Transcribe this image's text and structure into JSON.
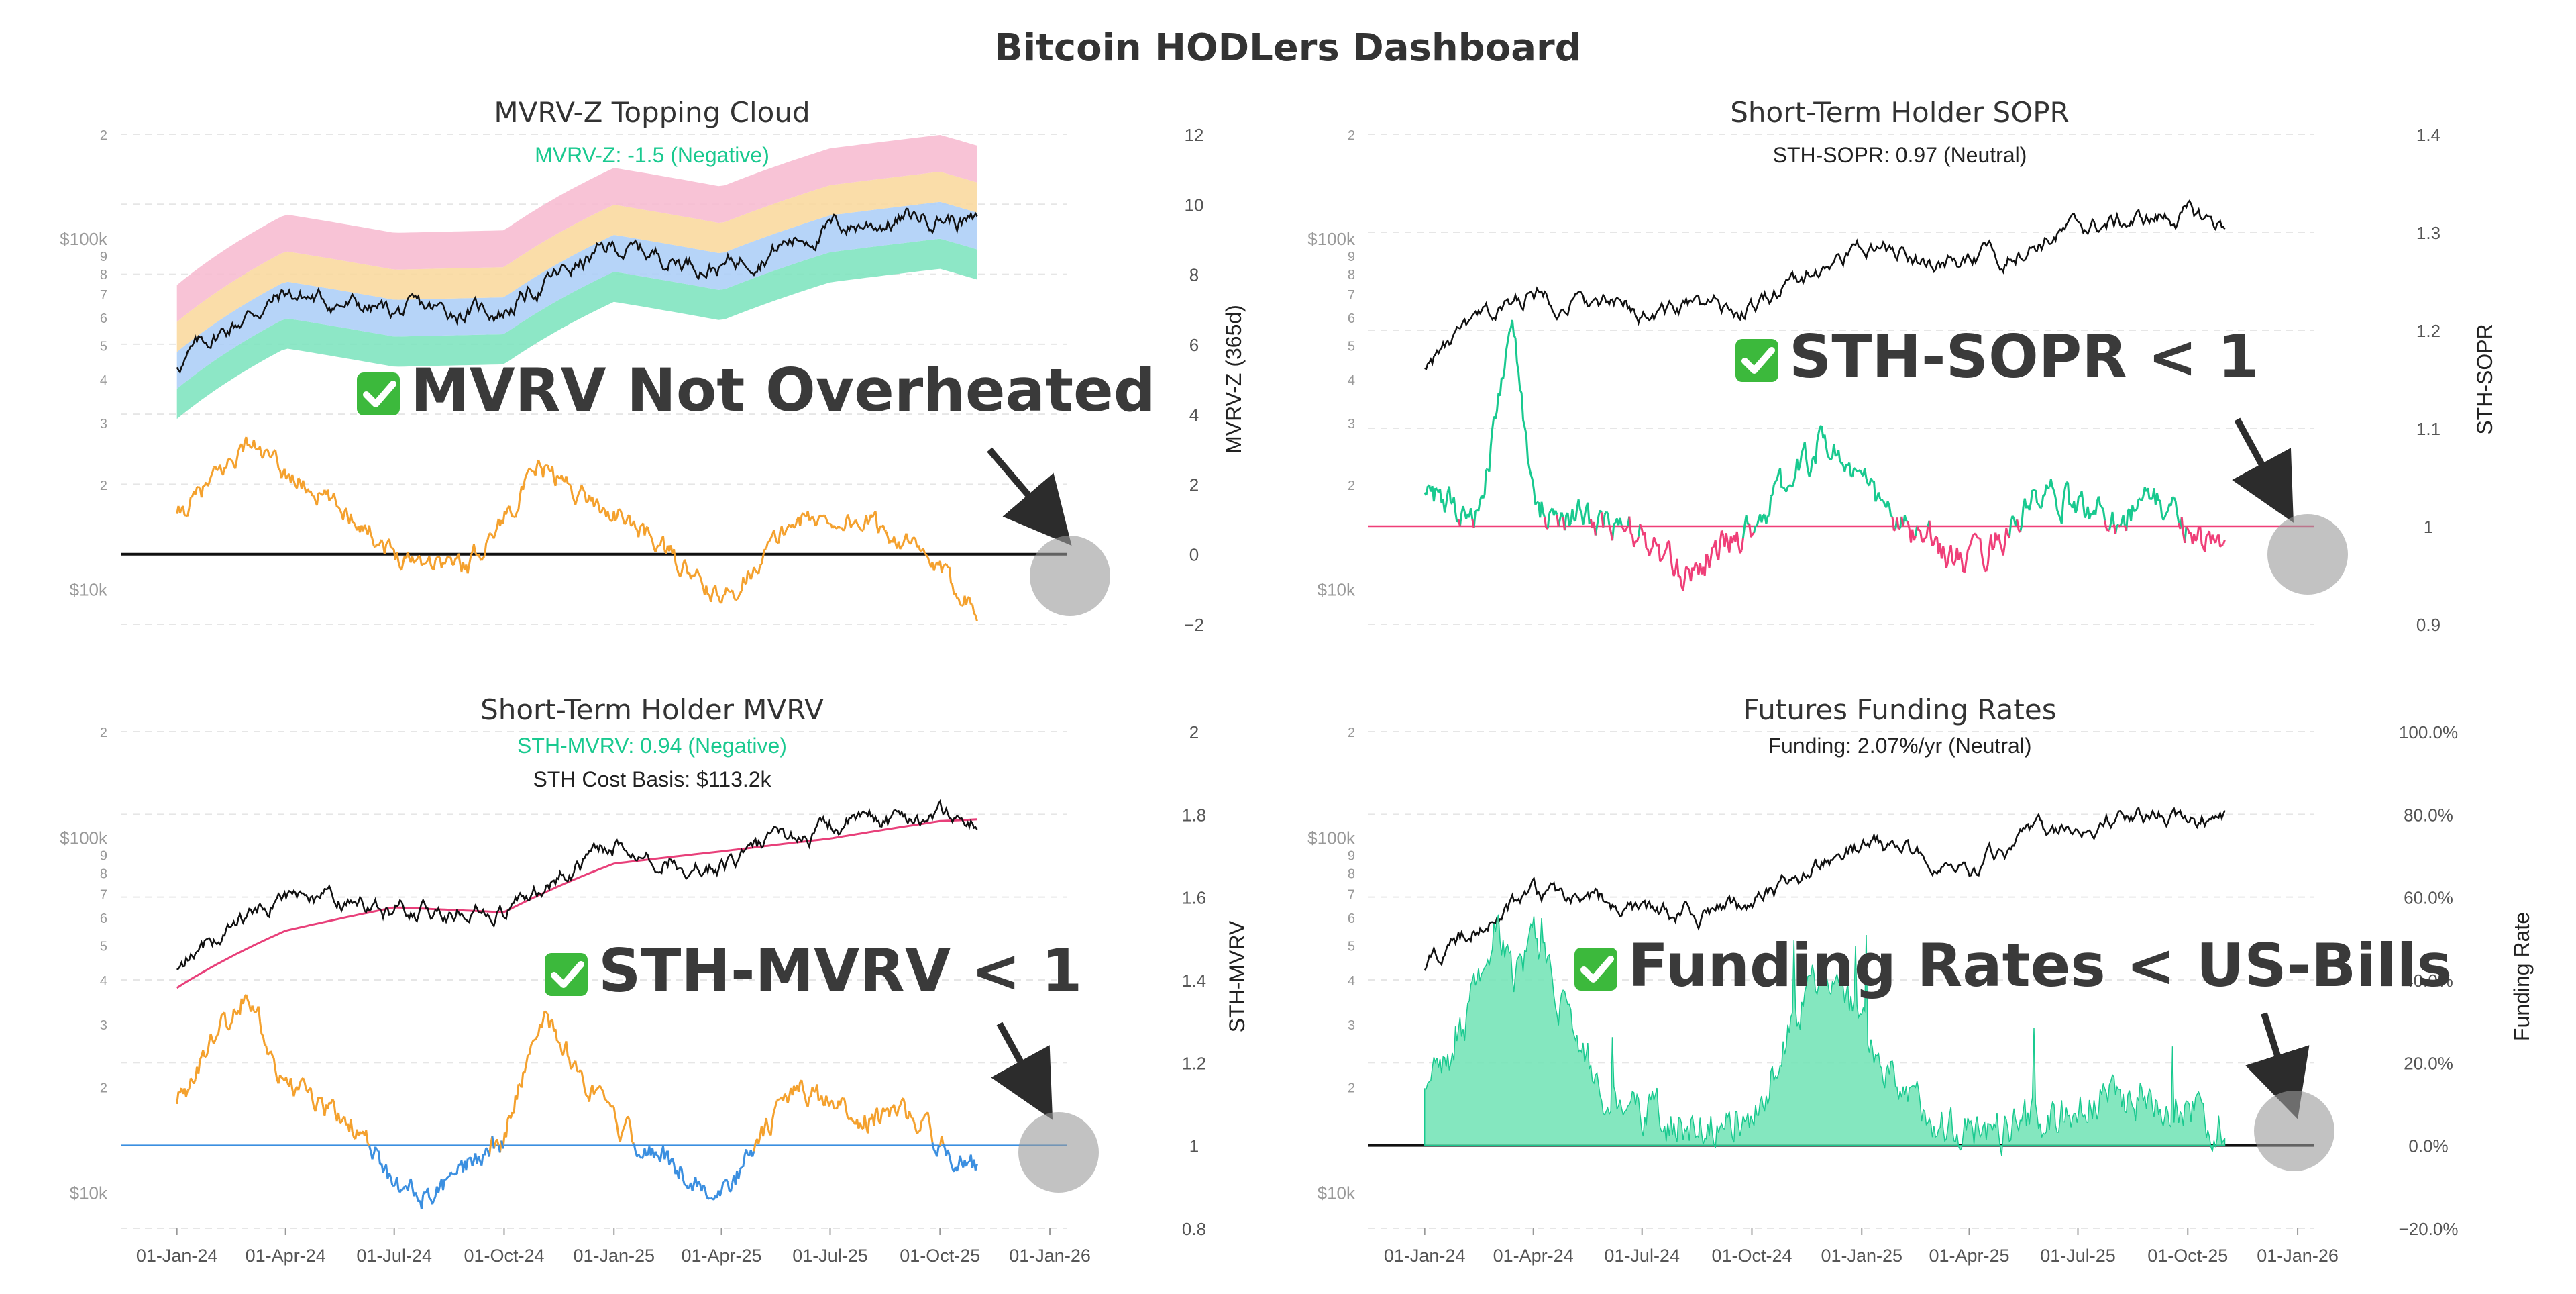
{
  "page": {
    "title": "Bitcoin HODLers Dashboard"
  },
  "colors": {
    "price": "#111111",
    "orange": "#f4a12e",
    "green": "#19c98f",
    "green_fill": "#6fe3b4",
    "pink": "#ef3f78",
    "blue": "#3b8fe0",
    "cost_basis": "#e8407a",
    "callout_circle": "#9a9a9a",
    "check_green": "#3cb93c"
  },
  "x_axis": {
    "dates": [
      "01-Jan-24",
      "01-Apr-24",
      "01-Jul-24",
      "01-Oct-24",
      "01-Jan-25",
      "01-Apr-25",
      "01-Jul-25",
      "01-Oct-25",
      "01-Jan-26"
    ]
  },
  "price_axis": {
    "type": "log",
    "ticks": [
      {
        "label": "$10k"
      },
      {
        "label": "$100k"
      },
      {
        "label": "2"
      },
      {
        "label": "3"
      },
      {
        "label": "4"
      },
      {
        "label": "5"
      },
      {
        "label": "6"
      },
      {
        "label": "7"
      },
      {
        "label": "8"
      },
      {
        "label": "9"
      }
    ]
  },
  "callouts": {
    "c1": {
      "icon": "check-mark-icon",
      "text": "MVRV Not Overheated"
    },
    "c2": {
      "icon": "check-mark-icon",
      "text": "STH-SOPR < 1"
    },
    "c3": {
      "icon": "check-mark-icon",
      "text": "STH-MVRV < 1"
    },
    "c4": {
      "icon": "check-mark-icon",
      "text": "Funding Rates < US-Bills"
    }
  },
  "chart_data": [
    {
      "type": "line",
      "title": "MVRV-Z Topping Cloud",
      "subtitle": "MVRV-Z: -1.5 (Negative)",
      "y2label": "MVRV-Z (365d)",
      "y2ticks": [
        "12",
        "10",
        "8",
        "6",
        "4",
        "2",
        "0",
        "−2"
      ],
      "y2lim": [
        -2,
        12
      ],
      "price_series": {
        "x": [
          "01-Jan-24",
          "01-Apr-24",
          "01-Jul-24",
          "01-Oct-24",
          "01-Jan-25",
          "01-Apr-25",
          "01-Jul-25",
          "01-Oct-25",
          "01-Nov-25"
        ],
        "values": [
          44000,
          70000,
          62000,
          63000,
          95000,
          84000,
          108000,
          118000,
          110000
        ]
      },
      "series": [
        {
          "x": [
            "01-Jan-24",
            "01-Mar-24",
            "01-Apr-24",
            "01-Jun-24",
            "01-Jul-24",
            "01-Sep-24",
            "01-Nov-24",
            "01-Dec-24",
            "01-Feb-25",
            "01-Apr-25",
            "01-Jun-25",
            "01-Aug-25",
            "01-Sep-25",
            "01-Nov-25"
          ],
          "values": [
            1.0,
            3.2,
            2.3,
            1.0,
            0.0,
            -0.3,
            2.5,
            1.8,
            0.5,
            -1.4,
            1.0,
            0.9,
            0.4,
            -1.5
          ]
        }
      ]
    },
    {
      "type": "line",
      "title": "Short-Term Holder SOPR",
      "subtitle": "STH-SOPR: 0.97 (Neutral)",
      "y2label": "STH-SOPR",
      "y2ticks": [
        "1.4",
        "1.3",
        "1.2",
        "1.1",
        "1",
        "0.9"
      ],
      "y2lim": [
        0.9,
        1.4
      ],
      "price_series": {
        "x": [
          "01-Jan-24",
          "01-Apr-24",
          "01-Jul-24",
          "01-Oct-24",
          "01-Jan-25",
          "01-Apr-25",
          "01-Jul-25",
          "01-Oct-25",
          "01-Nov-25"
        ],
        "values": [
          44000,
          70000,
          62000,
          63000,
          95000,
          84000,
          108000,
          118000,
          110000
        ]
      },
      "series": [
        {
          "x": [
            "01-Jan-24",
            "15-Feb-24",
            "15-Mar-24",
            "01-Apr-24",
            "01-Jul-24",
            "01-Aug-24",
            "01-Oct-24",
            "01-Dec-24",
            "01-Feb-25",
            "01-Apr-25",
            "01-Jun-25",
            "01-Aug-25",
            "01-Sep-25",
            "01-Nov-25"
          ],
          "values": [
            1.03,
            1.01,
            1.21,
            1.02,
            0.99,
            0.95,
            1.0,
            1.09,
            1.0,
            0.96,
            1.03,
            1.01,
            1.03,
            0.97
          ]
        }
      ]
    },
    {
      "type": "line",
      "title": "Short-Term Holder MVRV",
      "subtitle": "STH-MVRV: 0.94 (Negative)",
      "subtitle2": "STH Cost Basis: $113.2k",
      "y2label": "STH-MVRV",
      "y2ticks": [
        "2",
        "1.8",
        "1.6",
        "1.4",
        "1.2",
        "1",
        "0.8"
      ],
      "y2lim": [
        0.8,
        2.0
      ],
      "price_series": {
        "x": [
          "01-Jan-24",
          "01-Apr-24",
          "01-Jul-24",
          "01-Oct-24",
          "01-Jan-25",
          "01-Apr-25",
          "01-Jul-25",
          "01-Oct-25",
          "01-Nov-25"
        ],
        "values": [
          44000,
          70000,
          62000,
          63000,
          95000,
          84000,
          108000,
          118000,
          110000
        ]
      },
      "cost_basis": {
        "x": [
          "01-Jan-24",
          "01-Apr-24",
          "01-Jul-24",
          "01-Oct-24",
          "01-Jan-25",
          "01-Apr-25",
          "01-Jul-25",
          "01-Oct-25",
          "01-Nov-25"
        ],
        "values": [
          38000,
          55000,
          64000,
          62000,
          85000,
          92000,
          100000,
          112000,
          113200
        ]
      },
      "series": [
        {
          "x": [
            "01-Jan-24",
            "01-Mar-24",
            "01-Apr-24",
            "01-Jun-24",
            "01-Jul-24",
            "01-Aug-24",
            "01-Oct-24",
            "01-Nov-24",
            "01-Jan-25",
            "01-Apr-25",
            "01-Jun-25",
            "01-Aug-25",
            "01-Sep-25",
            "01-Nov-25"
          ],
          "values": [
            1.1,
            1.38,
            1.15,
            1.04,
            0.9,
            0.87,
            1.02,
            1.32,
            1.05,
            0.87,
            1.14,
            1.06,
            1.08,
            0.94
          ]
        }
      ]
    },
    {
      "type": "area",
      "title": "Futures Funding Rates",
      "subtitle": "Funding: 2.07%/yr (Neutral)",
      "y2label": "Funding Rate",
      "y2ticks": [
        "100.0%",
        "80.0%",
        "60.0%",
        "40.0%",
        "20.0%",
        "0.0%",
        "−20.0%"
      ],
      "y2lim": [
        -20,
        100
      ],
      "price_series": {
        "x": [
          "01-Jan-24",
          "01-Apr-24",
          "01-Jul-24",
          "01-Oct-24",
          "01-Jan-25",
          "01-Apr-25",
          "01-Jul-25",
          "01-Oct-25",
          "01-Nov-25"
        ],
        "values": [
          44000,
          70000,
          62000,
          63000,
          95000,
          84000,
          108000,
          118000,
          110000
        ]
      },
      "series": [
        {
          "x": [
            "01-Jan-24",
            "01-Feb-24",
            "01-Mar-24",
            "15-Mar-24",
            "01-Apr-24",
            "01-Jun-24",
            "01-Aug-24",
            "01-Oct-24",
            "01-Dec-24",
            "01-Feb-25",
            "01-Apr-25",
            "01-Jun-25",
            "01-Aug-25",
            "01-Oct-25",
            "01-Nov-25"
          ],
          "values": [
            15,
            25,
            55,
            40,
            50,
            10,
            5,
            8,
            45,
            12,
            3,
            6,
            12,
            10,
            2.07
          ]
        }
      ]
    }
  ]
}
